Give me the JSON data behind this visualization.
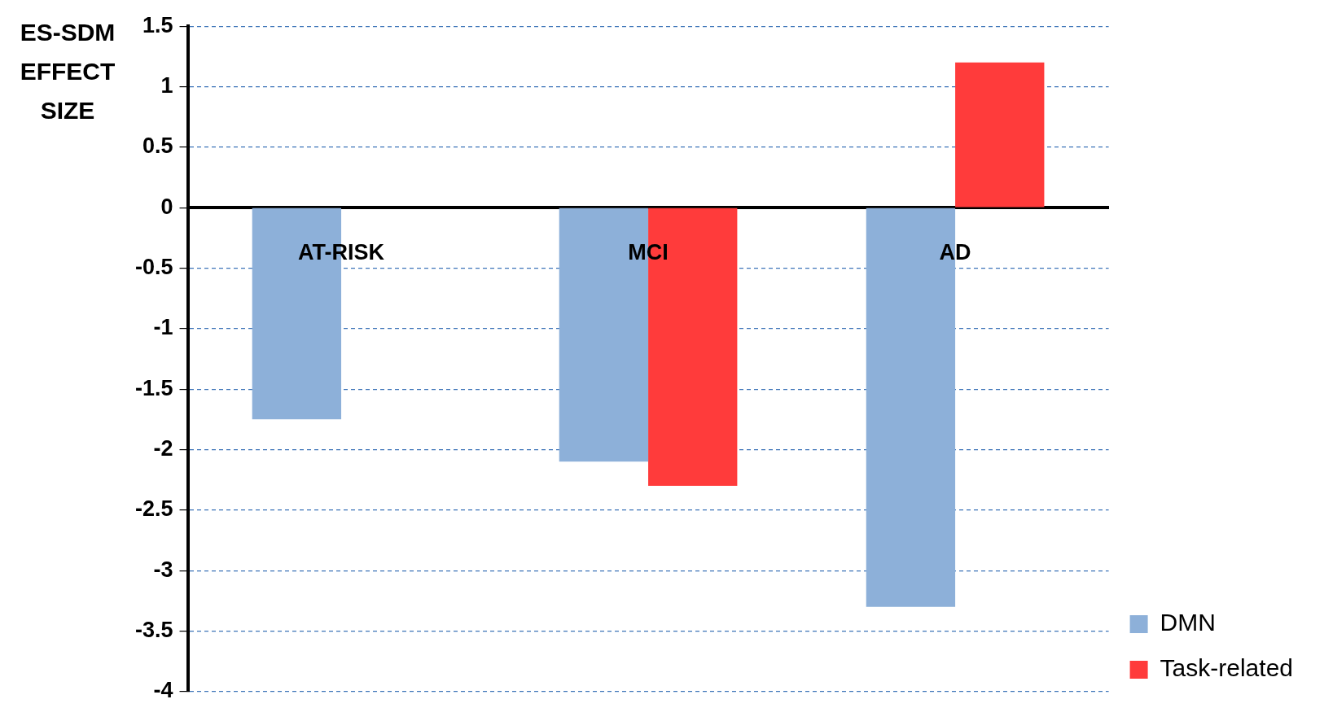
{
  "chart_data": {
    "type": "bar",
    "ylabel": "ES-SDM EFFECT SIZE",
    "categories": [
      "AT-RISK",
      "MCI",
      "AD"
    ],
    "series": [
      {
        "name": "DMN",
        "color": "#8db0d9",
        "values": [
          -1.75,
          -2.1,
          -3.3
        ]
      },
      {
        "name": "Task-related",
        "color": "#ff3b3b",
        "values": [
          null,
          -2.3,
          1.2
        ]
      }
    ],
    "ylim": [
      -4,
      1.5
    ],
    "yticks": [
      -4,
      -3.5,
      -3,
      -2.5,
      -2,
      -1.5,
      -1,
      -0.5,
      0,
      0.5,
      1,
      1.5
    ],
    "grid": "y",
    "legend": "bottom right"
  }
}
